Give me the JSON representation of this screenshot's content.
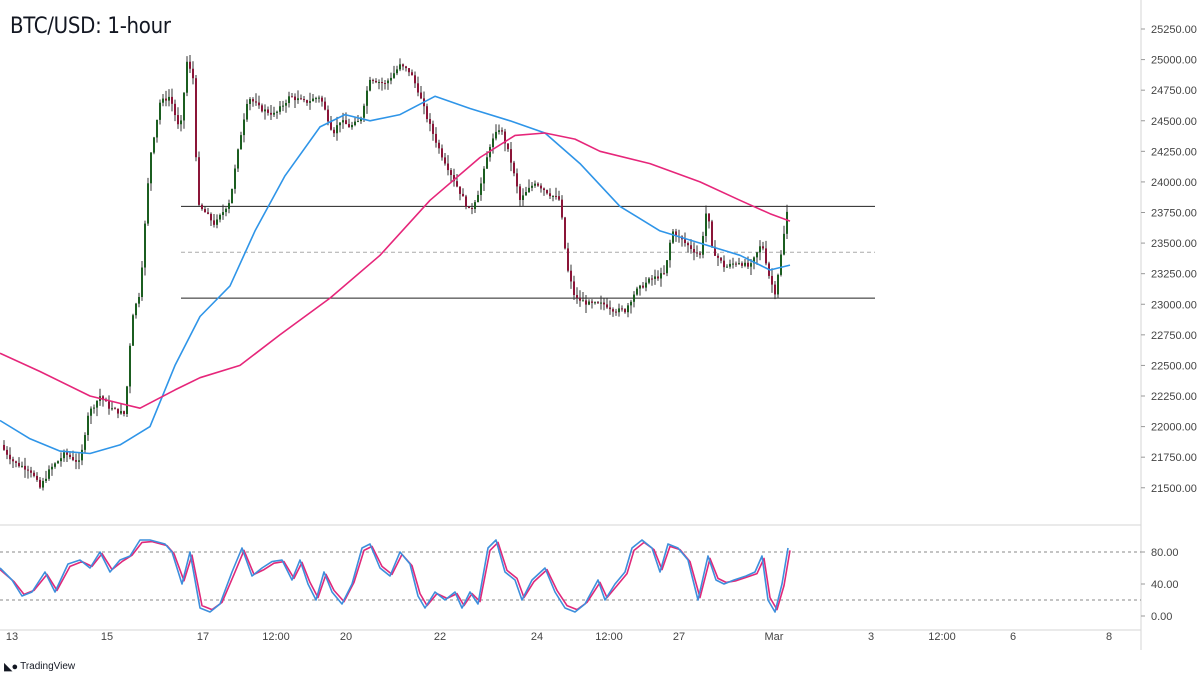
{
  "header": {
    "title": "BTC/USD: 1-hour"
  },
  "footer": {
    "brand": "TradingView",
    "logo_icon": "tradingview-logo-icon"
  },
  "colors": {
    "up": "#1b5e20",
    "down": "#8b1538",
    "wick": "#333333",
    "sma_fast": "#2f95e8",
    "sma_slow": "#e6267a",
    "stoch_k": "#3d8fdc",
    "stoch_d": "#e0297a",
    "level_line": "#222222",
    "mid_line": "#aaaaaa",
    "axis_text": "#444444"
  },
  "chart_data": [
    {
      "type": "candlestick",
      "title": "BTC/USD: 1-hour",
      "ylim": [
        21400,
        25250
      ],
      "y_ticks": [
        "25250.00",
        "25000.00",
        "24750.00",
        "24500.00",
        "24250.00",
        "24000.00",
        "23750.00",
        "23500.00",
        "23250.00",
        "23000.00",
        "22750.00",
        "22500.00",
        "22250.00",
        "22000.00",
        "21750.00",
        "21500.00"
      ],
      "x_ticks": [
        "13",
        "15",
        "17",
        "12:00",
        "20",
        "22",
        "24",
        "12:00",
        "27",
        "Mar",
        "3",
        "12:00",
        "6",
        "8"
      ],
      "levels": {
        "resistance": 23800,
        "middle": 23425,
        "support": 23050
      },
      "price_path": [
        [
          0,
          21850
        ],
        [
          15,
          21700
        ],
        [
          30,
          21650
        ],
        [
          40,
          21500
        ],
        [
          50,
          21650
        ],
        [
          65,
          21780
        ],
        [
          80,
          21700
        ],
        [
          88,
          22100
        ],
        [
          100,
          22250
        ],
        [
          110,
          22150
        ],
        [
          125,
          22100
        ],
        [
          132,
          22900
        ],
        [
          140,
          23100
        ],
        [
          150,
          24200
        ],
        [
          160,
          24650
        ],
        [
          170,
          24700
        ],
        [
          180,
          24400
        ],
        [
          187,
          24980
        ],
        [
          193,
          24850
        ],
        [
          198,
          23800
        ],
        [
          205,
          23750
        ],
        [
          215,
          23650
        ],
        [
          230,
          23850
        ],
        [
          240,
          24350
        ],
        [
          248,
          24700
        ],
        [
          260,
          24600
        ],
        [
          275,
          24550
        ],
        [
          290,
          24700
        ],
        [
          305,
          24650
        ],
        [
          320,
          24700
        ],
        [
          333,
          24400
        ],
        [
          340,
          24500
        ],
        [
          350,
          24450
        ],
        [
          360,
          24500
        ],
        [
          370,
          24850
        ],
        [
          385,
          24800
        ],
        [
          400,
          24950
        ],
        [
          410,
          24900
        ],
        [
          418,
          24750
        ],
        [
          428,
          24500
        ],
        [
          440,
          24250
        ],
        [
          455,
          24000
        ],
        [
          470,
          23750
        ],
        [
          480,
          23950
        ],
        [
          490,
          24300
        ],
        [
          500,
          24450
        ],
        [
          510,
          24200
        ],
        [
          520,
          23850
        ],
        [
          535,
          24000
        ],
        [
          550,
          23900
        ],
        [
          560,
          23850
        ],
        [
          567,
          23300
        ],
        [
          575,
          23050
        ],
        [
          590,
          23000
        ],
        [
          605,
          23000
        ],
        [
          615,
          22950
        ],
        [
          625,
          22950
        ],
        [
          635,
          23100
        ],
        [
          650,
          23200
        ],
        [
          665,
          23250
        ],
        [
          672,
          23600
        ],
        [
          685,
          23500
        ],
        [
          700,
          23400
        ],
        [
          707,
          23800
        ],
        [
          712,
          23450
        ],
        [
          725,
          23300
        ],
        [
          738,
          23350
        ],
        [
          750,
          23300
        ],
        [
          762,
          23500
        ],
        [
          770,
          23200
        ],
        [
          775,
          23100
        ],
        [
          782,
          23450
        ],
        [
          787,
          23750
        ]
      ],
      "series": [
        {
          "name": "",
          "type": "line",
          "points": [
            [
              0,
              22050
            ],
            [
              30,
              21900
            ],
            [
              60,
              21800
            ],
            [
              90,
              21780
            ],
            [
              120,
              21850
            ],
            [
              150,
              22000
            ],
            [
              175,
              22500
            ],
            [
              200,
              22900
            ],
            [
              230,
              23150
            ],
            [
              255,
              23600
            ],
            [
              285,
              24050
            ],
            [
              320,
              24450
            ],
            [
              345,
              24550
            ],
            [
              370,
              24500
            ],
            [
              400,
              24550
            ],
            [
              435,
              24700
            ],
            [
              470,
              24600
            ],
            [
              510,
              24500
            ],
            [
              545,
              24400
            ],
            [
              580,
              24150
            ],
            [
              620,
              23800
            ],
            [
              660,
              23600
            ],
            [
              700,
              23500
            ],
            [
              740,
              23400
            ],
            [
              770,
              23280
            ],
            [
              790,
              23320
            ]
          ]
        },
        {
          "name": "",
          "type": "line",
          "points": [
            [
              0,
              22600
            ],
            [
              40,
              22450
            ],
            [
              90,
              22250
            ],
            [
              140,
              22150
            ],
            [
              175,
              22300
            ],
            [
              200,
              22400
            ],
            [
              240,
              22500
            ],
            [
              280,
              22750
            ],
            [
              330,
              23050
            ],
            [
              380,
              23400
            ],
            [
              430,
              23850
            ],
            [
              480,
              24200
            ],
            [
              515,
              24380
            ],
            [
              545,
              24400
            ],
            [
              575,
              24350
            ],
            [
              600,
              24250
            ],
            [
              650,
              24150
            ],
            [
              700,
              24000
            ],
            [
              740,
              23850
            ],
            [
              770,
              23740
            ],
            [
              790,
              23680
            ]
          ]
        }
      ]
    },
    {
      "type": "line",
      "ylim": [
        0,
        100
      ],
      "y_ticks": [
        "80.00",
        "40.00",
        "0.00"
      ],
      "bands": [
        80,
        20
      ],
      "series": [
        {
          "name": "",
          "points": [
            [
              0,
              60
            ],
            [
              12,
              45
            ],
            [
              22,
              25
            ],
            [
              32,
              30
            ],
            [
              45,
              55
            ],
            [
              55,
              30
            ],
            [
              68,
              65
            ],
            [
              80,
              70
            ],
            [
              90,
              60
            ],
            [
              100,
              80
            ],
            [
              110,
              55
            ],
            [
              120,
              70
            ],
            [
              130,
              75
            ],
            [
              140,
              95
            ],
            [
              150,
              95
            ],
            [
              165,
              90
            ],
            [
              172,
              80
            ],
            [
              182,
              40
            ],
            [
              190,
              80
            ],
            [
              200,
              10
            ],
            [
              210,
              5
            ],
            [
              220,
              15
            ],
            [
              232,
              55
            ],
            [
              242,
              85
            ],
            [
              252,
              50
            ],
            [
              262,
              60
            ],
            [
              272,
              68
            ],
            [
              282,
              70
            ],
            [
              292,
              45
            ],
            [
              300,
              70
            ],
            [
              308,
              40
            ],
            [
              316,
              20
            ],
            [
              324,
              55
            ],
            [
              332,
              30
            ],
            [
              342,
              15
            ],
            [
              352,
              40
            ],
            [
              362,
              85
            ],
            [
              370,
              90
            ],
            [
              380,
              60
            ],
            [
              390,
              50
            ],
            [
              400,
              80
            ],
            [
              410,
              65
            ],
            [
              418,
              25
            ],
            [
              425,
              10
            ],
            [
              435,
              30
            ],
            [
              445,
              20
            ],
            [
              455,
              30
            ],
            [
              462,
              10
            ],
            [
              470,
              30
            ],
            [
              478,
              15
            ],
            [
              488,
              85
            ],
            [
              496,
              95
            ],
            [
              505,
              55
            ],
            [
              515,
              45
            ],
            [
              522,
              20
            ],
            [
              532,
              45
            ],
            [
              545,
              60
            ],
            [
              555,
              30
            ],
            [
              565,
              10
            ],
            [
              575,
              5
            ],
            [
              585,
              15
            ],
            [
              598,
              45
            ],
            [
              605,
              20
            ],
            [
              615,
              40
            ],
            [
              625,
              55
            ],
            [
              632,
              85
            ],
            [
              642,
              95
            ],
            [
              652,
              85
            ],
            [
              660,
              55
            ],
            [
              668,
              90
            ],
            [
              678,
              85
            ],
            [
              688,
              70
            ],
            [
              698,
              20
            ],
            [
              708,
              75
            ],
            [
              716,
              45
            ],
            [
              724,
              40
            ],
            [
              734,
              45
            ],
            [
              746,
              50
            ],
            [
              755,
              55
            ],
            [
              762,
              75
            ],
            [
              768,
              20
            ],
            [
              775,
              5
            ],
            [
              782,
              40
            ],
            [
              788,
              85
            ]
          ]
        },
        {
          "name": "",
          "points": [
            [
              0,
              58
            ],
            [
              14,
              43
            ],
            [
              24,
              27
            ],
            [
              34,
              32
            ],
            [
              47,
              52
            ],
            [
              57,
              32
            ],
            [
              70,
              62
            ],
            [
              82,
              68
            ],
            [
              92,
              62
            ],
            [
              102,
              78
            ],
            [
              112,
              58
            ],
            [
              122,
              68
            ],
            [
              132,
              76
            ],
            [
              142,
              92
            ],
            [
              152,
              93
            ],
            [
              167,
              88
            ],
            [
              174,
              78
            ],
            [
              184,
              44
            ],
            [
              192,
              76
            ],
            [
              202,
              13
            ],
            [
              212,
              8
            ],
            [
              222,
              17
            ],
            [
              234,
              52
            ],
            [
              244,
              82
            ],
            [
              254,
              52
            ],
            [
              264,
              58
            ],
            [
              274,
              66
            ],
            [
              284,
              68
            ],
            [
              294,
              47
            ],
            [
              302,
              67
            ],
            [
              310,
              42
            ],
            [
              318,
              23
            ],
            [
              326,
              52
            ],
            [
              334,
              32
            ],
            [
              344,
              18
            ],
            [
              354,
              42
            ],
            [
              364,
              82
            ],
            [
              372,
              87
            ],
            [
              382,
              62
            ],
            [
              392,
              52
            ],
            [
              402,
              77
            ],
            [
              412,
              63
            ],
            [
              420,
              28
            ],
            [
              427,
              13
            ],
            [
              437,
              28
            ],
            [
              447,
              22
            ],
            [
              457,
              28
            ],
            [
              464,
              13
            ],
            [
              472,
              28
            ],
            [
              480,
              18
            ],
            [
              490,
              82
            ],
            [
              498,
              92
            ],
            [
              507,
              57
            ],
            [
              517,
              47
            ],
            [
              524,
              23
            ],
            [
              534,
              43
            ],
            [
              547,
              58
            ],
            [
              557,
              32
            ],
            [
              567,
              13
            ],
            [
              577,
              8
            ],
            [
              587,
              17
            ],
            [
              600,
              42
            ],
            [
              607,
              23
            ],
            [
              617,
              38
            ],
            [
              627,
              53
            ],
            [
              634,
              82
            ],
            [
              644,
              92
            ],
            [
              654,
              83
            ],
            [
              662,
              58
            ],
            [
              670,
              87
            ],
            [
              680,
              83
            ],
            [
              690,
              68
            ],
            [
              700,
              23
            ],
            [
              710,
              72
            ],
            [
              718,
              47
            ],
            [
              726,
              42
            ],
            [
              736,
              44
            ],
            [
              748,
              49
            ],
            [
              757,
              53
            ],
            [
              764,
              72
            ],
            [
              770,
              23
            ],
            [
              777,
              8
            ],
            [
              784,
              38
            ],
            [
              790,
              82
            ]
          ]
        }
      ]
    }
  ]
}
